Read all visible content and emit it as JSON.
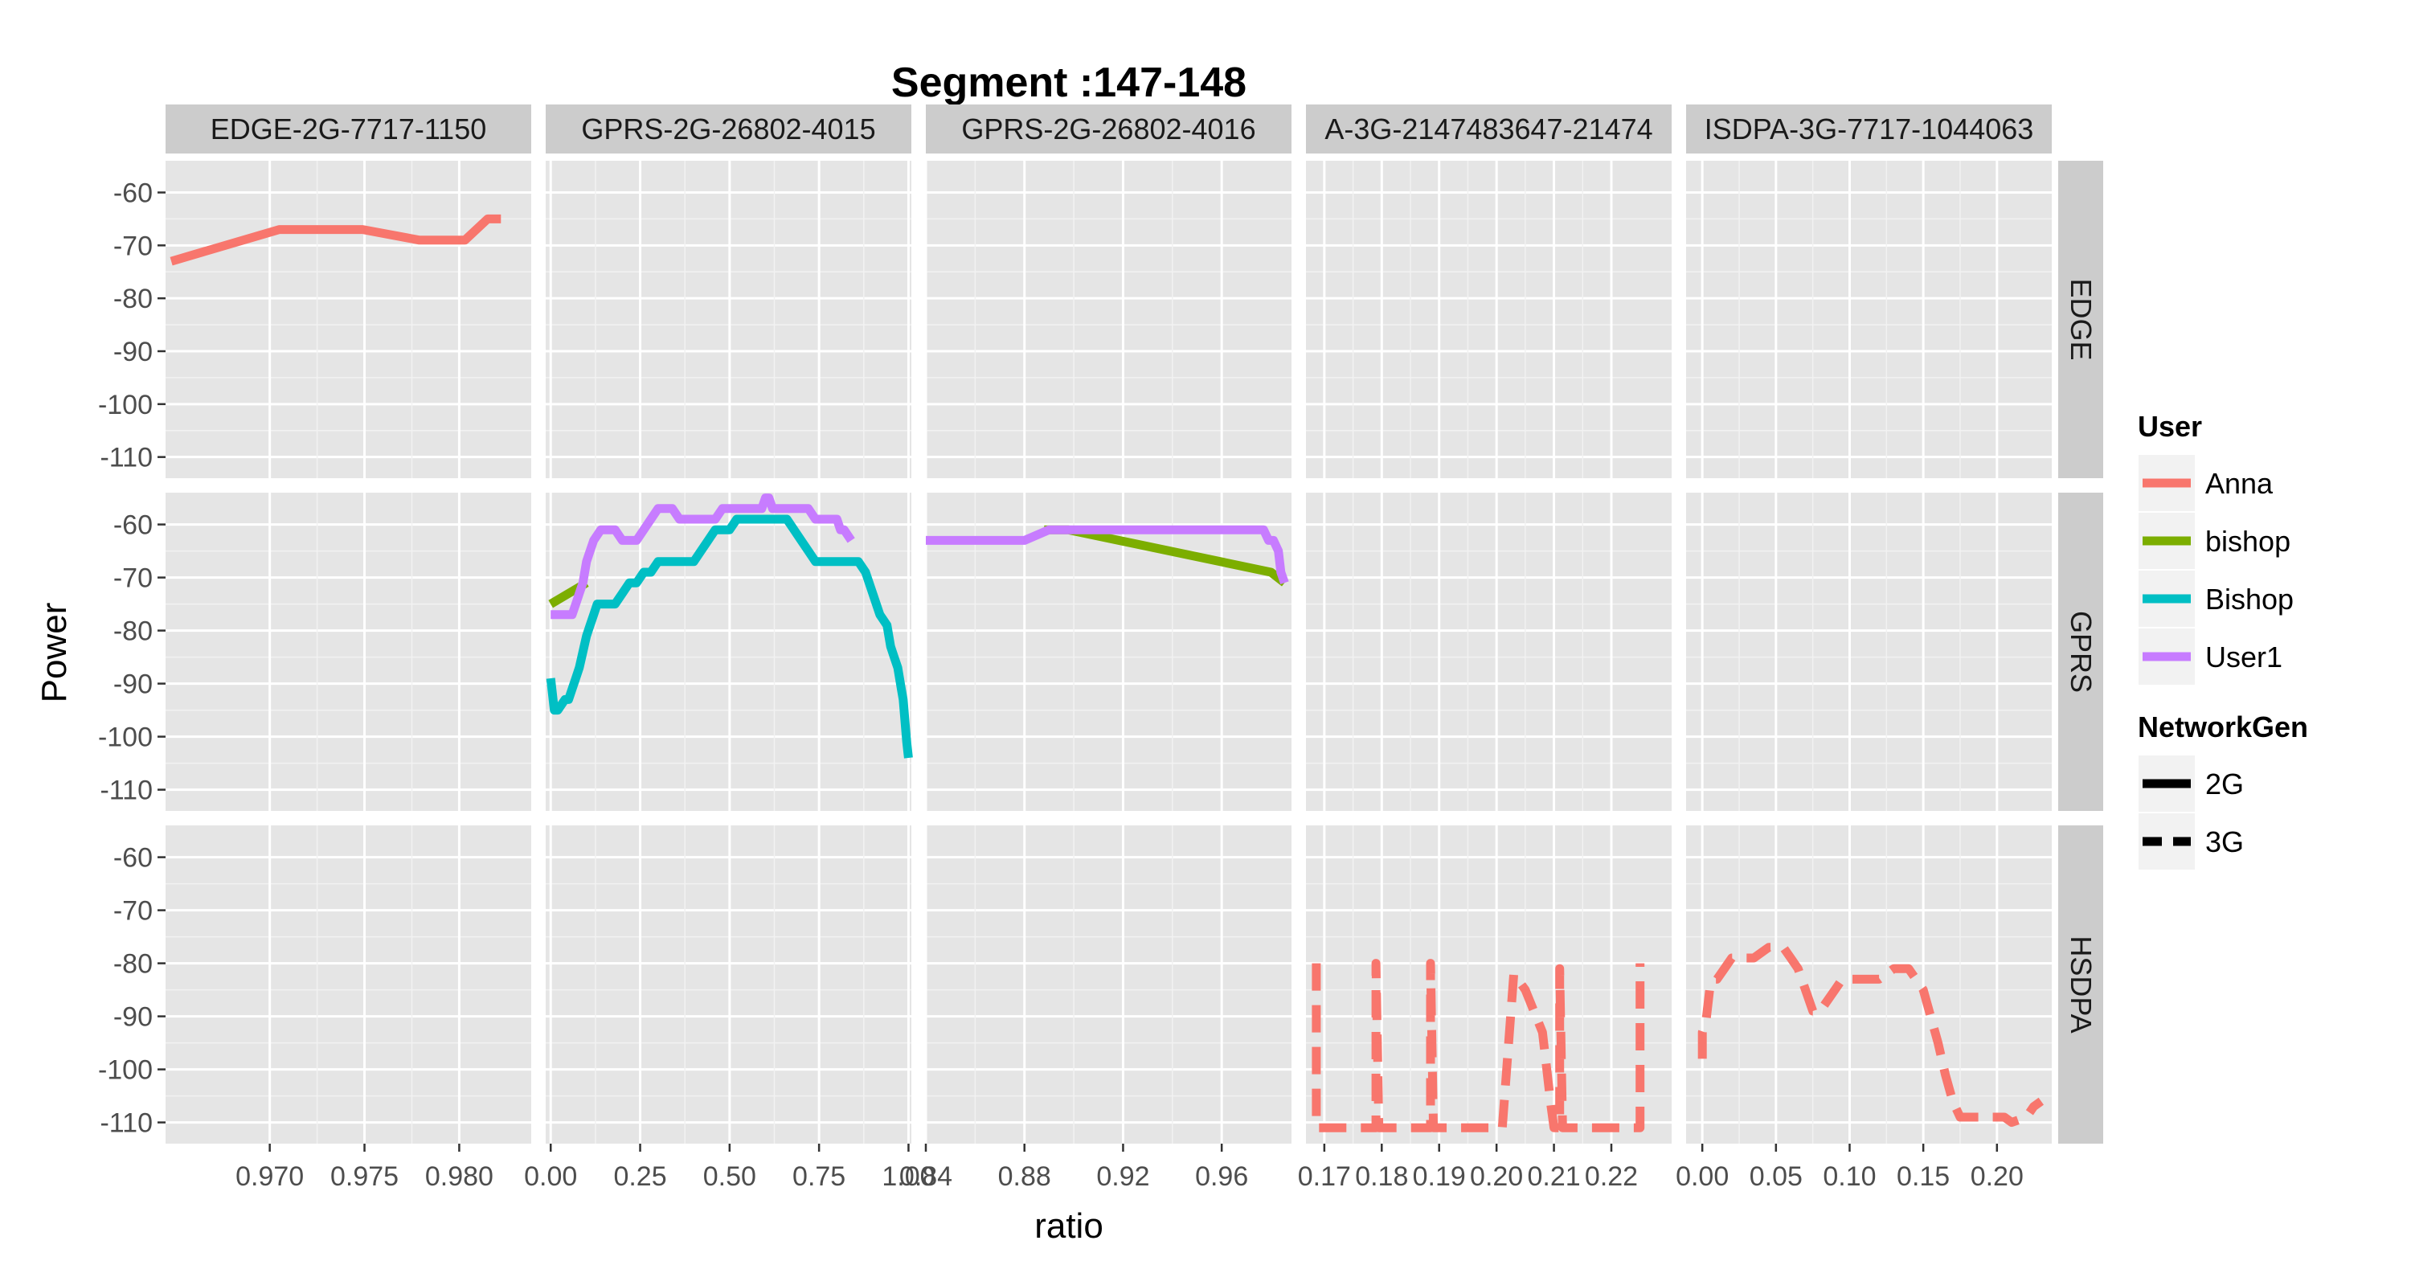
{
  "chart_data": {
    "type": "line",
    "title": "Segment :147-148",
    "xlabel": "ratio",
    "ylabel": "Power",
    "grid": true,
    "legend_placement": "right",
    "columns": [
      {
        "label": "EDGE-2G-7717-1150",
        "xlim": [
          0.9645,
          0.9838
        ],
        "ticks": [
          0.97,
          0.975,
          0.98
        ],
        "tick_labels": [
          "0.970",
          "0.975",
          "0.980"
        ]
      },
      {
        "label": "GPRS-2G-26802-4015",
        "xlim": [
          -0.014,
          1.008
        ],
        "ticks": [
          0.0,
          0.25,
          0.5,
          0.75,
          1.0
        ],
        "tick_labels": [
          "0.00",
          "0.25",
          "0.50",
          "0.75",
          "1.00"
        ]
      },
      {
        "label": "GPRS-2G-26802-4016",
        "xlim": [
          0.84,
          0.9883
        ],
        "ticks": [
          0.84,
          0.88,
          0.92,
          0.96
        ],
        "tick_labels": [
          "0.84",
          "0.88",
          "0.92",
          "0.96"
        ]
      },
      {
        "label": "A-3G-2147483647-21474",
        "xlim": [
          0.1668,
          0.2305
        ],
        "ticks": [
          0.17,
          0.18,
          0.19,
          0.2,
          0.21,
          0.22
        ],
        "tick_labels": [
          "0.17",
          "0.18",
          "0.19",
          "0.20",
          "0.21",
          "0.22"
        ]
      },
      {
        "label": "ISDPA-3G-7717-1044063",
        "xlim": [
          -0.011,
          0.2372
        ],
        "ticks": [
          0.0,
          0.05,
          0.1,
          0.15,
          0.2
        ],
        "tick_labels": [
          "0.00",
          "0.05",
          "0.10",
          "0.15",
          "0.20"
        ]
      }
    ],
    "rows": [
      {
        "label": "EDGE"
      },
      {
        "label": "GPRS"
      },
      {
        "label": "HSDPA"
      }
    ],
    "ylim": [
      -114,
      -54
    ],
    "yticks": [
      -60,
      -70,
      -80,
      -90,
      -100,
      -110
    ],
    "ytick_labels": [
      "-60",
      "-70",
      "-80",
      "-90",
      "-100",
      "-110"
    ],
    "legends": [
      {
        "title": "User",
        "entries": [
          {
            "label": "Anna",
            "color": "#F8766D"
          },
          {
            "label": "bishop",
            "color": "#7CAE00"
          },
          {
            "label": "Bishop",
            "color": "#00BFC4"
          },
          {
            "label": "User1",
            "color": "#C77CFF"
          }
        ]
      },
      {
        "title": "NetworkGen",
        "entries": [
          {
            "label": "2G",
            "linetype": "solid"
          },
          {
            "label": "3G",
            "linetype": "dashed"
          }
        ]
      }
    ],
    "series": [
      {
        "user": "Anna",
        "network": "2G",
        "color": "#F8766D",
        "linetype": "solid",
        "column": 0,
        "row": 0,
        "x": [
          0.9648,
          0.9705,
          0.9749,
          0.9779,
          0.9803,
          0.9815,
          0.9822
        ],
        "y": [
          -73,
          -67,
          -67,
          -69,
          -69,
          -65,
          -65
        ]
      },
      {
        "user": "bishop",
        "network": "2G",
        "color": "#7CAE00",
        "linetype": "solid",
        "column": 1,
        "row": 1,
        "x": [
          0.0,
          0.1
        ],
        "y": [
          -75,
          -71
        ]
      },
      {
        "user": "Bishop",
        "network": "2G",
        "color": "#00BFC4",
        "linetype": "solid",
        "column": 1,
        "row": 1,
        "x": [
          0.0,
          0.01,
          0.02,
          0.04,
          0.05,
          0.06,
          0.07,
          0.08,
          0.09,
          0.1,
          0.11,
          0.12,
          0.13,
          0.14,
          0.15,
          0.16,
          0.18,
          0.2,
          0.22,
          0.24,
          0.26,
          0.28,
          0.3,
          0.32,
          0.34,
          0.36,
          0.38,
          0.4,
          0.42,
          0.44,
          0.46,
          0.48,
          0.5,
          0.52,
          0.54,
          0.56,
          0.58,
          0.6,
          0.62,
          0.64,
          0.66,
          0.68,
          0.7,
          0.72,
          0.74,
          0.76,
          0.78,
          0.8,
          0.82,
          0.84,
          0.86,
          0.88,
          0.9,
          0.92,
          0.94,
          0.95,
          0.96,
          0.97,
          0.98,
          0.985,
          0.99,
          0.995,
          1.0
        ],
        "y": [
          -89,
          -95,
          -95,
          -93,
          -93,
          -91,
          -89,
          -87,
          -84,
          -81,
          -79,
          -77,
          -75,
          -75,
          -75,
          -75,
          -75,
          -73,
          -71,
          -71,
          -69,
          -69,
          -67,
          -67,
          -67,
          -67,
          -67,
          -67,
          -65,
          -63,
          -61,
          -61,
          -61,
          -59,
          -59,
          -59,
          -59,
          -59,
          -59,
          -59,
          -59,
          -61,
          -63,
          -65,
          -67,
          -67,
          -67,
          -67,
          -67,
          -67,
          -67,
          -69,
          -73,
          -77,
          -79,
          -83,
          -85,
          -87,
          -91,
          -93,
          -97,
          -101,
          -104
        ]
      },
      {
        "user": "User1",
        "network": "2G",
        "color": "#C77CFF",
        "linetype": "solid",
        "column": 1,
        "row": 1,
        "x": [
          0.0,
          0.01,
          0.02,
          0.04,
          0.06,
          0.07,
          0.08,
          0.09,
          0.1,
          0.11,
          0.12,
          0.14,
          0.16,
          0.18,
          0.2,
          0.22,
          0.24,
          0.26,
          0.28,
          0.3,
          0.32,
          0.34,
          0.36,
          0.38,
          0.4,
          0.42,
          0.44,
          0.46,
          0.48,
          0.5,
          0.52,
          0.54,
          0.56,
          0.58,
          0.59,
          0.6,
          0.61,
          0.62,
          0.64,
          0.66,
          0.68,
          0.7,
          0.72,
          0.74,
          0.76,
          0.78,
          0.8,
          0.81,
          0.82,
          0.84
        ],
        "y": [
          -77,
          -77,
          -77,
          -77,
          -77,
          -75,
          -73,
          -71,
          -67,
          -65,
          -63,
          -61,
          -61,
          -61,
          -63,
          -63,
          -63,
          -61,
          -59,
          -57,
          -57,
          -57,
          -59,
          -59,
          -59,
          -59,
          -59,
          -59,
          -57,
          -57,
          -57,
          -57,
          -57,
          -57,
          -57,
          -55,
          -55,
          -57,
          -57,
          -57,
          -57,
          -57,
          -57,
          -59,
          -59,
          -59,
          -59,
          -61,
          -61,
          -63
        ]
      },
      {
        "user": "bishop",
        "network": "2G",
        "color": "#7CAE00",
        "linetype": "solid",
        "column": 2,
        "row": 1,
        "x": [
          0.888,
          0.8978,
          0.98,
          0.9855
        ],
        "y": [
          -61,
          -61,
          -69,
          -71
        ]
      },
      {
        "user": "User1",
        "network": "2G",
        "color": "#C77CFF",
        "linetype": "solid",
        "column": 2,
        "row": 1,
        "x": [
          0.84,
          0.86,
          0.872,
          0.876,
          0.88,
          0.89,
          0.91,
          0.93,
          0.95,
          0.975,
          0.977,
          0.979,
          0.981,
          0.983,
          0.984,
          0.9855
        ],
        "y": [
          -63,
          -63,
          -63,
          -63,
          -63,
          -61,
          -61,
          -61,
          -61,
          -61,
          -61,
          -63,
          -63,
          -65,
          -69,
          -71
        ]
      },
      {
        "user": "Anna",
        "network": "3G",
        "color": "#F8766D",
        "linetype": "dashed",
        "column": 3,
        "row": 2,
        "x": [
          0.1686,
          0.1686,
          0.169,
          0.1775,
          0.179,
          0.179,
          0.1795,
          0.186,
          0.1885,
          0.1885,
          0.189,
          0.195,
          0.198,
          0.199,
          0.201,
          0.203,
          0.205,
          0.208,
          0.2095,
          0.21,
          0.211,
          0.211,
          0.2115,
          0.222,
          0.225,
          0.225
        ],
        "y": [
          -80,
          -111,
          -111,
          -111,
          -111,
          -80,
          -111,
          -111,
          -111,
          -80,
          -111,
          -111,
          -111,
          -111,
          -111,
          -82,
          -85,
          -93,
          -107,
          -111,
          -111,
          -81,
          -111,
          -111,
          -111,
          -80
        ]
      },
      {
        "user": "Anna",
        "network": "3G",
        "color": "#F8766D",
        "linetype": "dashed",
        "column": 4,
        "row": 2,
        "x": [
          0.0,
          0.0,
          0.0025,
          0.005,
          0.0075,
          0.01,
          0.015,
          0.02,
          0.025,
          0.03,
          0.035,
          0.04,
          0.045,
          0.05,
          0.055,
          0.06,
          0.065,
          0.07,
          0.075,
          0.08,
          0.085,
          0.09,
          0.095,
          0.1,
          0.11,
          0.12,
          0.13,
          0.14,
          0.145,
          0.15,
          0.155,
          0.16,
          0.165,
          0.17,
          0.175,
          0.18,
          0.19,
          0.2,
          0.205,
          0.21,
          0.22,
          0.225,
          0.23
        ],
        "y": [
          -98,
          -93,
          -91,
          -85,
          -83,
          -83,
          -81,
          -79,
          -79,
          -79,
          -79,
          -78,
          -77,
          -77,
          -77,
          -79,
          -81,
          -85,
          -89,
          -89,
          -87,
          -85,
          -83,
          -83,
          -83,
          -83,
          -81,
          -81,
          -83,
          -85,
          -90,
          -95,
          -101,
          -106,
          -109,
          -109,
          -109,
          -109,
          -109,
          -110,
          -109,
          -107,
          -106
        ]
      }
    ]
  }
}
